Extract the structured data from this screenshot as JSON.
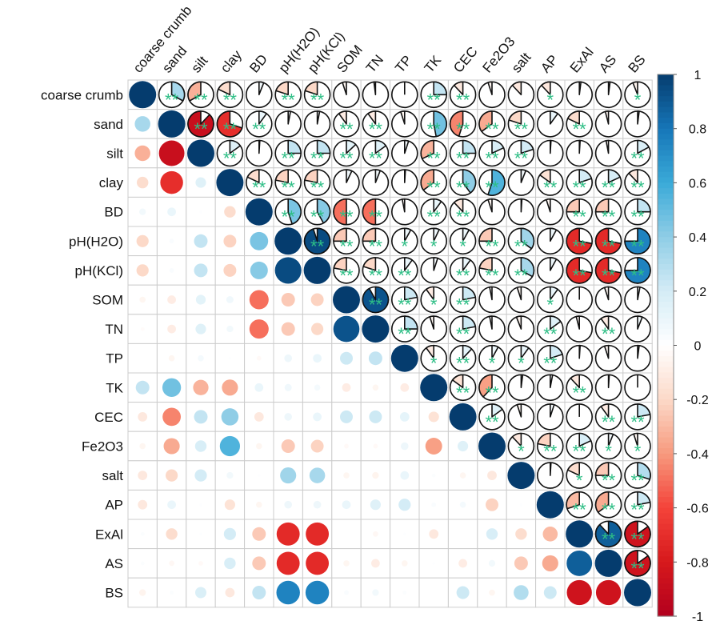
{
  "chart_data": {
    "type": "heatmap",
    "subtype": "correlation-matrix",
    "lower_method": "circle",
    "upper_method": "pie",
    "variables": [
      "coarse crumb",
      "sand",
      "silt",
      "clay",
      "BD",
      "pH(H2O)",
      "pH(KCl)",
      "SOM",
      "TN",
      "TP",
      "TK",
      "CEC",
      "Fe2O3",
      "salt",
      "AP",
      "ExAl",
      "AS",
      "BS"
    ],
    "matrix": [
      [
        1,
        0.33,
        -0.33,
        -0.18,
        0.06,
        -0.2,
        -0.2,
        -0.05,
        -0.02,
        0,
        0.25,
        -0.12,
        -0.05,
        -0.12,
        -0.12,
        0.02,
        0.02,
        -0.06
      ],
      [
        0.33,
        1,
        -0.88,
        -0.7,
        0.1,
        0.03,
        0.03,
        -0.1,
        -0.1,
        -0.05,
        0.47,
        -0.45,
        -0.35,
        -0.2,
        0.1,
        -0.18,
        -0.04,
        0.02
      ],
      [
        -0.33,
        -0.88,
        1,
        0.15,
        0.01,
        0.25,
        0.25,
        0.13,
        0.15,
        0.05,
        -0.32,
        0.25,
        0.18,
        0.2,
        0.01,
        0.01,
        -0.03,
        0.17
      ],
      [
        -0.18,
        -0.7,
        0.15,
        1,
        -0.18,
        -0.22,
        -0.22,
        0.07,
        0.06,
        0.01,
        -0.35,
        0.4,
        0.55,
        0.06,
        -0.15,
        0.2,
        0.18,
        -0.12
      ],
      [
        0.06,
        0.1,
        0.01,
        -0.18,
        1,
        0.45,
        0.42,
        -0.5,
        -0.5,
        -0.03,
        0.1,
        -0.12,
        -0.05,
        0.01,
        -0.05,
        -0.25,
        -0.25,
        0.25
      ],
      [
        -0.2,
        0.03,
        0.25,
        -0.22,
        0.45,
        1,
        0.95,
        -0.25,
        -0.25,
        0.08,
        0.07,
        0.08,
        -0.25,
        0.35,
        0.08,
        -0.72,
        -0.72,
        0.75
      ],
      [
        -0.2,
        0.03,
        0.25,
        -0.22,
        0.42,
        0.95,
        1,
        -0.22,
        -0.2,
        0.1,
        0.05,
        0.1,
        -0.22,
        0.33,
        0.08,
        -0.72,
        -0.72,
        0.75
      ],
      [
        -0.05,
        -0.1,
        0.13,
        0.07,
        -0.5,
        -0.25,
        -0.22,
        1,
        0.92,
        0.22,
        -0.1,
        0.22,
        -0.03,
        -0.05,
        0.1,
        0,
        -0.05,
        0.03
      ],
      [
        -0.02,
        -0.1,
        0.15,
        0.06,
        -0.5,
        -0.25,
        -0.2,
        0.92,
        1,
        0.25,
        -0.05,
        0.22,
        -0.03,
        -0.06,
        0.15,
        -0.04,
        -0.1,
        0.06
      ],
      [
        0,
        -0.05,
        0.05,
        0.01,
        -0.03,
        0.08,
        0.1,
        0.22,
        0.25,
        1,
        -0.1,
        0.12,
        0.08,
        0.1,
        0.2,
        0.01,
        -0.05,
        0.02
      ],
      [
        0.25,
        0.47,
        -0.32,
        -0.35,
        0.1,
        0.07,
        0.05,
        -0.1,
        -0.05,
        -0.1,
        1,
        -0.15,
        -0.38,
        0.02,
        0.03,
        -0.12,
        0.01,
        0
      ],
      [
        -0.12,
        -0.45,
        0.25,
        0.4,
        -0.12,
        0.08,
        0.1,
        0.22,
        0.22,
        0.12,
        -0.15,
        1,
        0.15,
        -0.05,
        0.05,
        0,
        -0.1,
        0.22
      ],
      [
        -0.05,
        -0.35,
        0.18,
        0.55,
        -0.05,
        -0.25,
        -0.22,
        -0.03,
        -0.03,
        0.08,
        -0.38,
        0.15,
        1,
        -0.12,
        -0.22,
        0.18,
        0.06,
        -0.05
      ],
      [
        -0.12,
        -0.2,
        0.2,
        0.06,
        0.01,
        0.35,
        0.33,
        -0.05,
        -0.06,
        0.1,
        0.02,
        -0.05,
        -0.12,
        1,
        0.01,
        -0.18,
        -0.25,
        0.3
      ],
      [
        -0.12,
        0.1,
        0.01,
        -0.15,
        -0.05,
        0.08,
        0.08,
        0.1,
        0.15,
        0.2,
        0.03,
        0.05,
        -0.22,
        0.01,
        1,
        -0.3,
        -0.35,
        0.22
      ],
      [
        0.02,
        -0.18,
        0.01,
        0.2,
        -0.25,
        -0.72,
        -0.72,
        0,
        -0.04,
        0.01,
        -0.12,
        0,
        0.18,
        -0.18,
        -0.3,
        1,
        0.88,
        -0.85
      ],
      [
        0.02,
        -0.04,
        -0.03,
        0.18,
        -0.25,
        -0.72,
        -0.72,
        -0.05,
        -0.1,
        -0.05,
        0.01,
        -0.1,
        0.06,
        -0.25,
        -0.35,
        0.88,
        1,
        -0.85
      ],
      [
        -0.06,
        0.02,
        0.17,
        -0.12,
        0.25,
        0.75,
        0.75,
        0.03,
        0.06,
        0.02,
        0,
        0.22,
        -0.05,
        0.3,
        0.22,
        -0.85,
        -0.85,
        1
      ]
    ],
    "significance_upper": [
      [
        "**",
        "**",
        "**",
        "",
        "**",
        "**",
        "",
        "",
        "",
        "**",
        "**",
        "",
        "",
        "*",
        "",
        "",
        "*"
      ],
      [
        "**",
        "**",
        "**",
        "",
        "",
        "**",
        "**",
        "",
        "**",
        "**",
        "**",
        "**",
        "",
        "**",
        "",
        ""
      ],
      [
        "**",
        "",
        "**",
        "**",
        "**",
        "**",
        "",
        "**",
        "**",
        "**",
        "**",
        "",
        "",
        "",
        "**"
      ],
      [
        "**",
        "**",
        "**",
        "",
        "",
        "",
        "**",
        "**",
        "**",
        "",
        "**",
        "**",
        "**",
        "**"
      ],
      [
        "**",
        "**",
        "**",
        "**",
        "",
        "**",
        "**",
        "",
        "",
        "",
        "**",
        "**",
        "**"
      ],
      [
        "**",
        "**",
        "**",
        "*",
        "*",
        "*",
        "**",
        "**",
        "",
        "**",
        "**",
        "**"
      ],
      [
        "**",
        "**",
        "**",
        "",
        "**",
        "**",
        "**",
        "",
        "**",
        "**",
        "**"
      ],
      [
        "**",
        "**",
        "*",
        "**",
        "",
        "",
        "*",
        "",
        "",
        ""
      ],
      [
        "**",
        "",
        "**",
        "",
        "",
        "**",
        "",
        "**",
        ""
      ],
      [
        "*",
        "**",
        "*",
        "*",
        "**",
        "",
        "",
        ""
      ],
      [
        "**",
        "**",
        "",
        "",
        "**",
        "",
        ""
      ],
      [
        "**",
        "",
        "",
        "",
        "**",
        "**"
      ],
      [
        "*",
        "**",
        "**",
        "*",
        "*"
      ],
      [
        "",
        "*",
        "**",
        "**"
      ],
      [
        "**",
        "**",
        "**"
      ],
      [
        "**",
        "**"
      ],
      [
        "**"
      ]
    ],
    "colorbar": {
      "range": [
        -1,
        1
      ],
      "tick_labels": [
        "1",
        "0.8",
        "0.6",
        "0.4",
        "0.2",
        "0",
        "-0.2",
        "-0.4",
        "-0.6",
        "-0.8",
        "-1"
      ],
      "tick_values": [
        1,
        0.8,
        0.6,
        0.4,
        0.2,
        0,
        -0.2,
        -0.4,
        -0.6,
        -0.8,
        -1
      ],
      "placement": "right"
    },
    "colors": {
      "scale": [
        "#B2001E",
        "#D7191C",
        "#F4433A",
        "#F79A7E",
        "#FCD9C8",
        "#FFFFFF",
        "#D4ECF6",
        "#8FCDE6",
        "#3AAAD8",
        "#1676B8",
        "#053C6E"
      ],
      "significance_star": "#2DBE85",
      "grid": "#CCCCCC"
    },
    "grid": true
  }
}
